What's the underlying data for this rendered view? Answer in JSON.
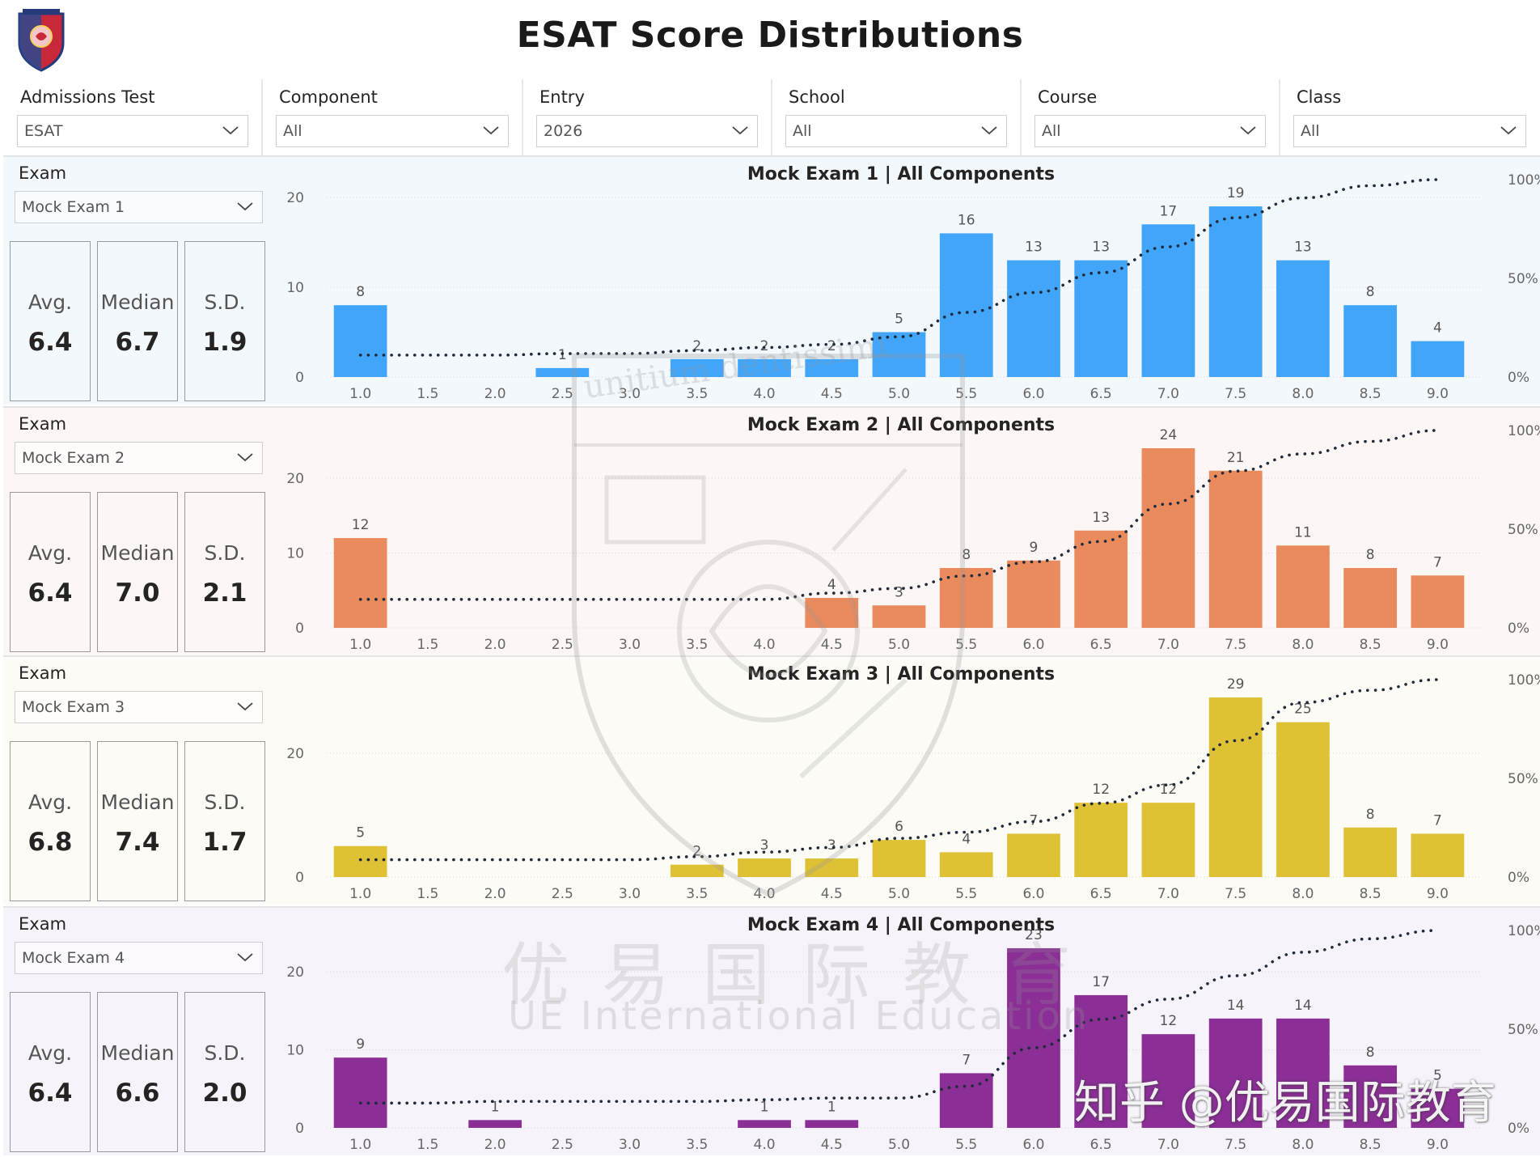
{
  "header": {
    "title": "ESAT Score Distributions"
  },
  "filters": [
    {
      "label": "Admissions Test",
      "value": "ESAT"
    },
    {
      "label": "Component",
      "value": "All"
    },
    {
      "label": "Entry",
      "value": "2026"
    },
    {
      "label": "School",
      "value": "All"
    },
    {
      "label": "Course",
      "value": "All"
    },
    {
      "label": "Class",
      "value": "All"
    }
  ],
  "exam_label": "Exam",
  "stat_labels": {
    "avg": "Avg.",
    "median": "Median",
    "sd": "S.D."
  },
  "watermark": {
    "cn": "优易国际教育",
    "en": "UE International Education",
    "zhihu": "知乎 @优易国际教育",
    "crest_text": "unitium dentissimi"
  },
  "panels": [
    {
      "exam": "Mock Exam 1",
      "avg": "6.4",
      "median": "6.7",
      "sd": "1.9",
      "bg": "#f3f8fd",
      "bar_color": "#41a5fa"
    },
    {
      "exam": "Mock Exam 2",
      "avg": "6.4",
      "median": "7.0",
      "sd": "2.1",
      "bg": "#fcf7f5",
      "bar_color": "#e98b5d"
    },
    {
      "exam": "Mock Exam 3",
      "avg": "6.8",
      "median": "7.4",
      "sd": "1.7",
      "bg": "#fcfbf5",
      "bar_color": "#dfc135"
    },
    {
      "exam": "Mock Exam 4",
      "avg": "6.4",
      "median": "6.6",
      "sd": "2.0",
      "bg": "#f7f3fa",
      "bar_color": "#8b2f96"
    }
  ],
  "chart_data": [
    {
      "type": "bar",
      "title": "Mock Exam 1 | All Components",
      "categories": [
        "1.0",
        "1.5",
        "2.0",
        "2.5",
        "3.0",
        "3.5",
        "4.0",
        "4.5",
        "5.0",
        "5.5",
        "6.0",
        "6.5",
        "7.0",
        "7.5",
        "8.0",
        "8.5",
        "9.0"
      ],
      "series": [
        {
          "values": [
            8,
            0,
            0,
            1,
            0,
            2,
            2,
            2,
            5,
            16,
            13,
            13,
            17,
            19,
            13,
            8,
            4
          ]
        }
      ],
      "ylim": [
        0,
        20
      ],
      "yticks": [
        0,
        10,
        20
      ],
      "y2ticks": [
        "0%",
        "50%",
        "100%"
      ],
      "cumulative_line": "dotted"
    },
    {
      "type": "bar",
      "title": "Mock Exam 2 | All Components",
      "categories": [
        "1.0",
        "1.5",
        "2.0",
        "2.5",
        "3.0",
        "3.5",
        "4.0",
        "4.5",
        "5.0",
        "5.5",
        "6.0",
        "6.5",
        "7.0",
        "7.5",
        "8.0",
        "8.5",
        "9.0"
      ],
      "series": [
        {
          "values": [
            12,
            0,
            0,
            0,
            0,
            0,
            0,
            4,
            3,
            8,
            9,
            13,
            24,
            21,
            11,
            8,
            7
          ]
        }
      ],
      "ylim": [
        0,
        20
      ],
      "yticks": [
        0,
        10,
        20
      ],
      "y2ticks": [
        "0%",
        "50%",
        "100%"
      ],
      "cumulative_line": "dotted"
    },
    {
      "type": "bar",
      "title": "Mock Exam 3 | All Components",
      "categories": [
        "1.0",
        "1.5",
        "2.0",
        "2.5",
        "3.0",
        "3.5",
        "4.0",
        "4.5",
        "5.0",
        "5.5",
        "6.0",
        "6.5",
        "7.0",
        "7.5",
        "8.0",
        "8.5",
        "9.0"
      ],
      "series": [
        {
          "values": [
            5,
            0,
            0,
            0,
            0,
            2,
            3,
            3,
            6,
            4,
            7,
            12,
            12,
            29,
            25,
            8,
            7
          ]
        }
      ],
      "ylim": [
        0,
        20
      ],
      "yticks": [
        0,
        20
      ],
      "y2ticks": [
        "0%",
        "50%",
        "100%"
      ],
      "cumulative_line": "dotted"
    },
    {
      "type": "bar",
      "title": "Mock Exam 4 | All Components",
      "categories": [
        "1.0",
        "1.5",
        "2.0",
        "2.5",
        "3.0",
        "3.5",
        "4.0",
        "4.5",
        "5.0",
        "5.5",
        "6.0",
        "6.5",
        "7.0",
        "7.5",
        "8.0",
        "8.5",
        "9.0"
      ],
      "series": [
        {
          "values": [
            9,
            0,
            1,
            0,
            0,
            0,
            1,
            1,
            0,
            7,
            23,
            17,
            12,
            14,
            14,
            8,
            5
          ]
        }
      ],
      "ylim": [
        0,
        20
      ],
      "yticks": [
        0,
        10,
        20
      ],
      "y2ticks": [
        "0%",
        "50%",
        "100%"
      ],
      "cumulative_line": "dotted"
    }
  ]
}
